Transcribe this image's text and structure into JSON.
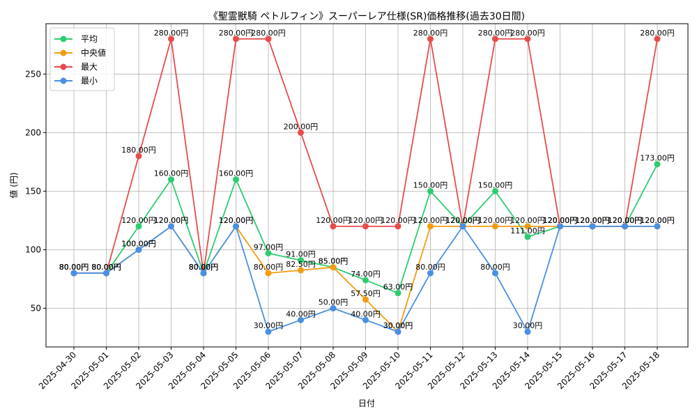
{
  "chart_data": {
    "type": "line",
    "title": "《聖霊獣騎 ペトルフィン》スーパーレア仕様(SR)価格推移(過去30日間)",
    "xlabel": "日付",
    "ylabel": "値 (円)",
    "ylim": [
      17,
      293
    ],
    "yticks": [
      50,
      100,
      150,
      200,
      250
    ],
    "grid": true,
    "legend_position": "top-left",
    "value_suffix": "円",
    "categories": [
      "2025-04-30",
      "2025-05-01",
      "2025-05-02",
      "2025-05-03",
      "2025-05-04",
      "2025-05-05",
      "2025-05-06",
      "2025-05-07",
      "2025-05-08",
      "2025-05-09",
      "2025-05-10",
      "2025-05-11",
      "2025-05-12",
      "2025-05-13",
      "2025-05-14",
      "2025-05-15",
      "2025-05-16",
      "2025-05-17",
      "2025-05-18"
    ],
    "series": [
      {
        "name": "平均",
        "color": "#2ecc71",
        "values": [
          80,
          80,
          120,
          160,
          80,
          160,
          97,
          91,
          85,
          74,
          63,
          150,
          120,
          150,
          111,
          120,
          120,
          120,
          173
        ]
      },
      {
        "name": "中央値",
        "color": "#f39c12",
        "values": [
          80,
          80,
          100,
          120,
          80,
          120,
          80,
          82.5,
          85,
          57.5,
          30,
          120,
          120,
          120,
          120,
          120,
          120,
          120,
          120
        ]
      },
      {
        "name": "最大",
        "color": "#e74c4c",
        "values": [
          80,
          80,
          180,
          280,
          80,
          280,
          280,
          200,
          120,
          120,
          120,
          280,
          120,
          280,
          280,
          120,
          120,
          120,
          280
        ]
      },
      {
        "name": "最小",
        "color": "#4a90e2",
        "values": [
          80,
          80,
          100,
          120,
          80,
          120,
          30,
          40,
          50,
          40,
          30,
          80,
          120,
          80,
          30,
          120,
          120,
          120,
          120
        ]
      }
    ]
  }
}
